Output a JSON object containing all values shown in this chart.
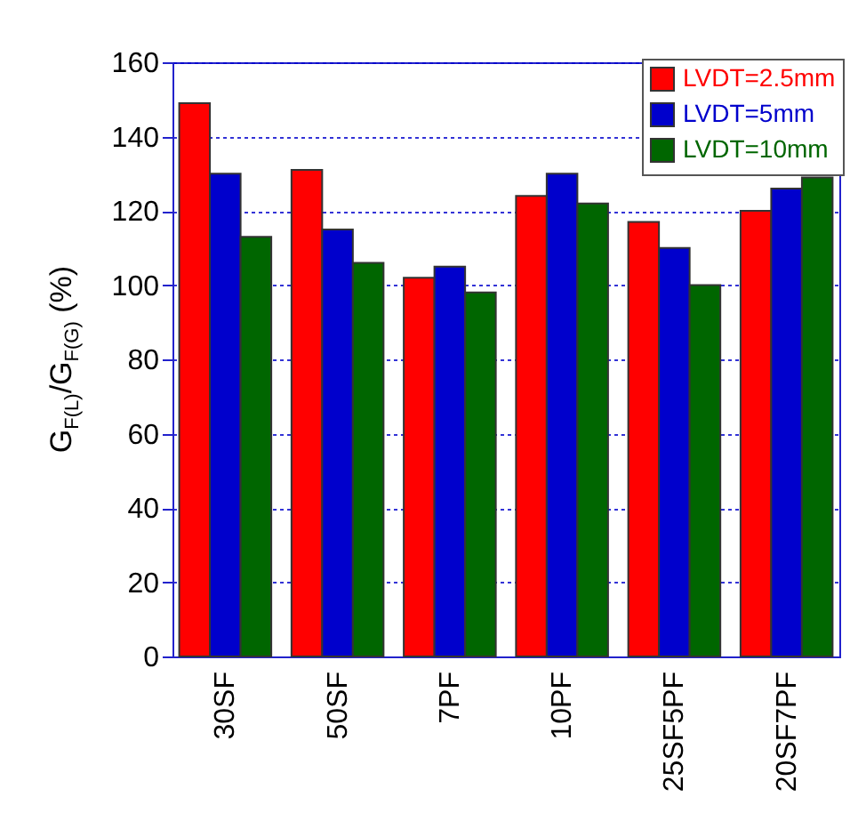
{
  "chart_data": {
    "type": "bar",
    "ylabel": "G$_{F(L)}$/G$_{F(G)}$ (%)",
    "categories": [
      "30SF",
      "50SF",
      "7PF",
      "10PF",
      "25SF5PF",
      "20SF7PF"
    ],
    "series": [
      {
        "name": "LVDT=2.5mm",
        "color": "#ff0000",
        "values": [
          149,
          131,
          102,
          124,
          117,
          120
        ]
      },
      {
        "name": "LVDT=5mm",
        "color": "#0000cc",
        "values": [
          130,
          115,
          105,
          130,
          110,
          126
        ]
      },
      {
        "name": "LVDT=10mm",
        "color": "#006600",
        "values": [
          113,
          106,
          98,
          122,
          100,
          129
        ]
      }
    ],
    "ylim": [
      0,
      160
    ],
    "yticks": [
      0,
      20,
      40,
      60,
      80,
      100,
      120,
      140,
      160
    ],
    "grid": "y",
    "legend": "top right"
  }
}
